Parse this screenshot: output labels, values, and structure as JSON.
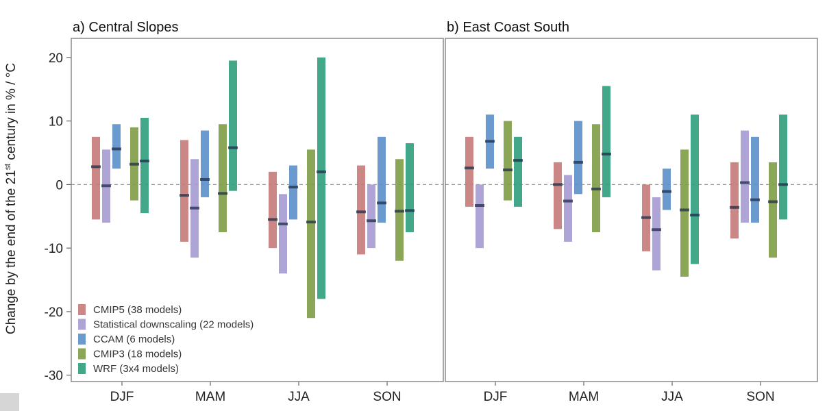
{
  "chart_data": {
    "type": "bar",
    "ylabel_prefix": "Change by the end of the 21",
    "ylabel_sup": "st",
    "ylabel_suffix": " century in % / °C",
    "ylim": [
      -31,
      23
    ],
    "yticks": [
      20,
      10,
      0,
      -10,
      -20,
      -30
    ],
    "categories": [
      "DJF",
      "MAM",
      "JJA",
      "SON"
    ],
    "colors": {
      "CMIP5": "#c47a78",
      "Statistical downscaling": "#a59ad0",
      "CCAM": "#5b8fc9",
      "CMIP3": "#7e9c44",
      "WRF": "#2e9e7c"
    },
    "legend": [
      {
        "key": "CMIP5",
        "label": "CMIP5 (38 models)"
      },
      {
        "key": "Statistical downscaling",
        "label": "Statistical downscaling (22 models)"
      },
      {
        "key": "CCAM",
        "label": "CCAM (6 models)"
      },
      {
        "key": "CMIP3",
        "label": "CMIP3 (18 models)"
      },
      {
        "key": "WRF",
        "label": "WRF (3x4 models)"
      }
    ],
    "panels": [
      {
        "title": "a) Central Slopes",
        "series": [
          {
            "name": "CMIP5",
            "low": [
              -5.5,
              -9,
              -10,
              -11
            ],
            "high": [
              7.5,
              7,
              2,
              3
            ],
            "median": [
              2.8,
              -1.7,
              -5.5,
              -4.3
            ]
          },
          {
            "name": "Statistical downscaling",
            "low": [
              -6,
              -11.5,
              -14,
              -10
            ],
            "high": [
              5.5,
              4,
              -1.5,
              0
            ],
            "median": [
              -0.2,
              -3.7,
              -6.2,
              -5.7
            ]
          },
          {
            "name": "CCAM",
            "low": [
              2.5,
              -2,
              -5.5,
              -6
            ],
            "high": [
              9.5,
              8.5,
              3,
              7.5
            ],
            "median": [
              5.6,
              0.8,
              -0.4,
              -2.9
            ]
          },
          {
            "name": "CMIP3",
            "low": [
              -2.5,
              -7.5,
              -21,
              -12
            ],
            "high": [
              9,
              9.5,
              5.5,
              4
            ],
            "median": [
              3.2,
              -1.4,
              -5.9,
              -4.2
            ]
          },
          {
            "name": "WRF",
            "low": [
              -4.5,
              -1,
              -18,
              -7.5
            ],
            "high": [
              10.5,
              19.5,
              20,
              6.5
            ],
            "median": [
              3.7,
              5.8,
              2,
              -4.1
            ]
          }
        ]
      },
      {
        "title": "b) East Coast South",
        "series": [
          {
            "name": "CMIP5",
            "low": [
              -3.5,
              -7,
              -10.5,
              -8.5
            ],
            "high": [
              7.5,
              3.5,
              0,
              3.5
            ],
            "median": [
              2.6,
              0,
              -5.2,
              -3.6
            ]
          },
          {
            "name": "Statistical downscaling",
            "low": [
              -10,
              -9,
              -13.5,
              -6
            ],
            "high": [
              0,
              1.5,
              -2,
              8.5
            ],
            "median": [
              -3.3,
              -2.6,
              -7.1,
              0.3
            ]
          },
          {
            "name": "CCAM",
            "low": [
              2.5,
              -1.5,
              -4,
              -6
            ],
            "high": [
              11,
              10,
              2.5,
              7.5
            ],
            "median": [
              6.8,
              3.5,
              -1.1,
              -2.4
            ]
          },
          {
            "name": "CMIP3",
            "low": [
              -2.5,
              -7.5,
              -14.5,
              -11.5
            ],
            "high": [
              10,
              9.5,
              5.5,
              3.5
            ],
            "median": [
              2.3,
              -0.7,
              -4,
              -2.7
            ]
          },
          {
            "name": "WRF",
            "low": [
              -3.5,
              -2,
              -12.5,
              -5.5
            ],
            "high": [
              7.5,
              15.5,
              11,
              11
            ],
            "median": [
              3.8,
              4.8,
              -4.8,
              0
            ]
          }
        ]
      }
    ],
    "zero_line": "dashed",
    "grid": false,
    "legend_position": "bottom-left of panel a"
  }
}
